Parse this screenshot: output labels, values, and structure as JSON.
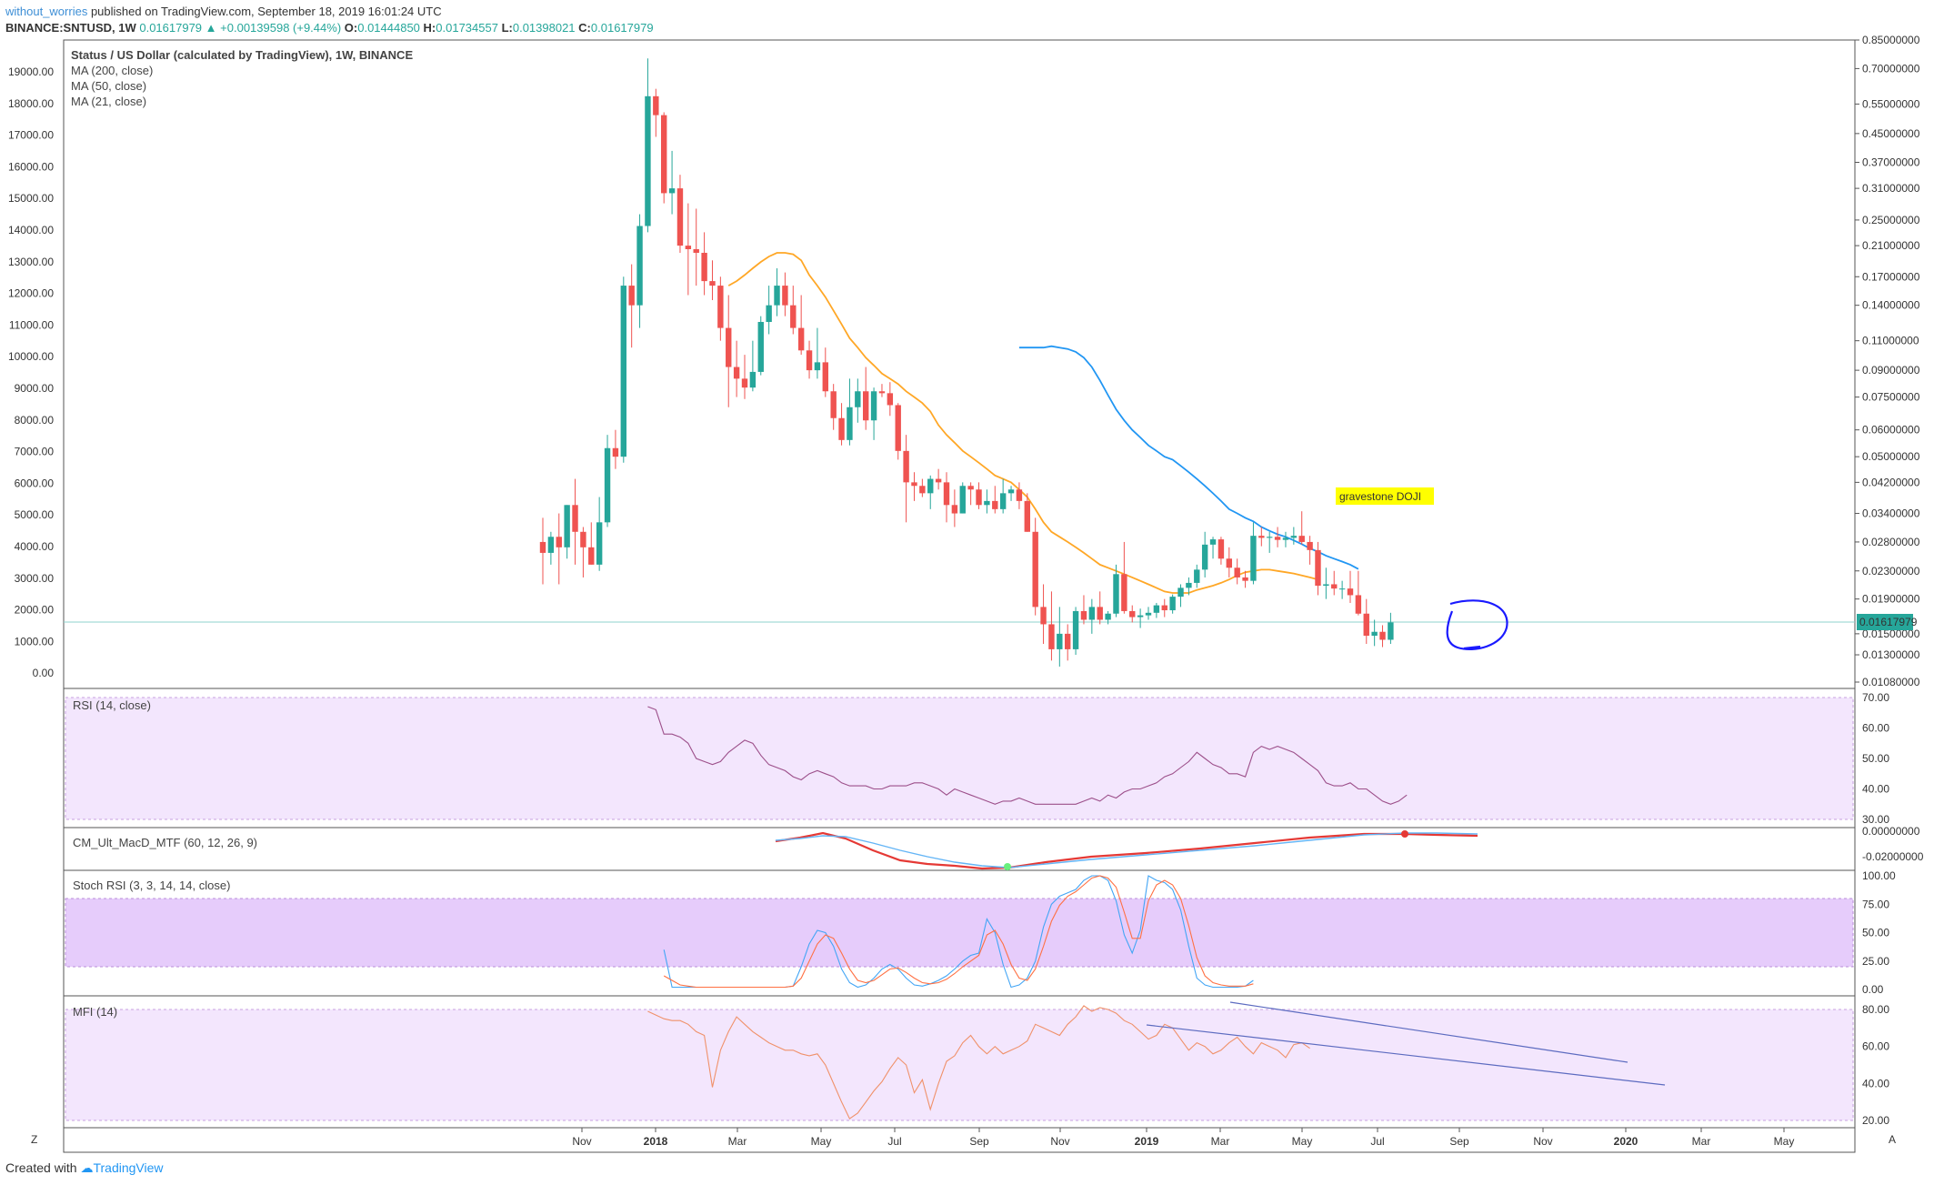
{
  "header": {
    "author": "without_worries",
    "published": " published on TradingView.com, September 18, 2019 16:01:24 UTC",
    "symbol": "BINANCE:SNTUSD, 1W",
    "last": "0.01617979",
    "change": "▲ +0.00139598 (+9.44%)",
    "o_label": "O:",
    "o": "0.01444850",
    "h_label": "H:",
    "h": "0.01734557",
    "l_label": "L:",
    "l": "0.01398021",
    "c_label": "C:",
    "c": "0.01617979"
  },
  "legend": {
    "title": "Status / US Dollar (calculated by TradingView), 1W, BINANCE",
    "ma200": "MA (200, close)",
    "ma50": "MA (50, close)",
    "ma21": "MA (21, close)"
  },
  "panes": {
    "rsi": "RSI (14, close)",
    "macd": "CM_Ult_MacD_MTF (60, 12, 26, 9)",
    "stoch": "Stoch RSI (3, 3, 14, 14, close)",
    "mfi": "MFI (14)"
  },
  "annotation": {
    "text": "gravestone DOJI"
  },
  "price_tag": "0.01617979",
  "footer": {
    "created": "Created with",
    "brand": "TradingView"
  },
  "corner_left": "Z",
  "corner_right": "A",
  "colors": {
    "up": "#26a69a",
    "down": "#ef5350",
    "ma50": "#2196f3",
    "ma21": "#ffa726",
    "band": "#e9d5fb",
    "rsi": "#9c4f8a",
    "mfi": "#f0916a",
    "stochK": "#42a5f5",
    "stochD": "#ff7043",
    "macd_line": "#e53935",
    "macd_signal": "#64b5f6"
  },
  "chart_data": {
    "type": "candlestick",
    "timeframe": "1W",
    "title": "Status / US Dollar (calculated by TradingView), 1W, BINANCE",
    "x_ticks": [
      "Nov",
      "2018",
      "Mar",
      "May",
      "Jul",
      "Sep",
      "Nov",
      "2019",
      "Mar",
      "May",
      "Jul",
      "Sep",
      "Nov",
      "2020",
      "Mar",
      "May"
    ],
    "left_axis": [
      "19000.00",
      "18000.00",
      "17000.00",
      "16000.00",
      "15000.00",
      "14000.00",
      "13000.00",
      "12000.00",
      "11000.00",
      "10000.00",
      "9000.00",
      "8000.00",
      "7000.00",
      "6000.00",
      "5000.00",
      "4000.00",
      "3000.00",
      "2000.00",
      "1000.00",
      "0.00"
    ],
    "right_axis": [
      "0.85000000",
      "0.70000000",
      "0.55000000",
      "0.45000000",
      "0.37000000",
      "0.31000000",
      "0.25000000",
      "0.21000000",
      "0.17000000",
      "0.14000000",
      "0.11000000",
      "0.09000000",
      "0.07500000",
      "0.06000000",
      "0.05000000",
      "0.04200000",
      "0.03400000",
      "0.02800000",
      "0.02300000",
      "0.01900000",
      "0.01500000",
      "0.01300000",
      "0.01080000"
    ],
    "last_price": 0.01617979,
    "candles": [
      {
        "o": 0.028,
        "h": 0.033,
        "l": 0.021,
        "c": 0.026
      },
      {
        "o": 0.026,
        "h": 0.03,
        "l": 0.024,
        "c": 0.029
      },
      {
        "o": 0.029,
        "h": 0.034,
        "l": 0.021,
        "c": 0.027
      },
      {
        "o": 0.027,
        "h": 0.036,
        "l": 0.025,
        "c": 0.036
      },
      {
        "o": 0.036,
        "h": 0.043,
        "l": 0.024,
        "c": 0.03
      },
      {
        "o": 0.03,
        "h": 0.031,
        "l": 0.022,
        "c": 0.027
      },
      {
        "o": 0.027,
        "h": 0.032,
        "l": 0.024,
        "c": 0.024
      },
      {
        "o": 0.024,
        "h": 0.038,
        "l": 0.023,
        "c": 0.032
      },
      {
        "o": 0.032,
        "h": 0.058,
        "l": 0.031,
        "c": 0.053
      },
      {
        "o": 0.053,
        "h": 0.06,
        "l": 0.046,
        "c": 0.05
      },
      {
        "o": 0.05,
        "h": 0.17,
        "l": 0.048,
        "c": 0.16
      },
      {
        "o": 0.16,
        "h": 0.185,
        "l": 0.105,
        "c": 0.14
      },
      {
        "o": 0.14,
        "h": 0.26,
        "l": 0.12,
        "c": 0.24
      },
      {
        "o": 0.24,
        "h": 0.75,
        "l": 0.23,
        "c": 0.58
      },
      {
        "o": 0.58,
        "h": 0.61,
        "l": 0.44,
        "c": 0.51
      },
      {
        "o": 0.51,
        "h": 0.52,
        "l": 0.28,
        "c": 0.3
      },
      {
        "o": 0.3,
        "h": 0.4,
        "l": 0.26,
        "c": 0.31
      },
      {
        "o": 0.31,
        "h": 0.34,
        "l": 0.2,
        "c": 0.21
      },
      {
        "o": 0.21,
        "h": 0.28,
        "l": 0.15,
        "c": 0.205
      },
      {
        "o": 0.205,
        "h": 0.27,
        "l": 0.16,
        "c": 0.2
      },
      {
        "o": 0.2,
        "h": 0.23,
        "l": 0.15,
        "c": 0.165
      },
      {
        "o": 0.165,
        "h": 0.19,
        "l": 0.145,
        "c": 0.16
      },
      {
        "o": 0.16,
        "h": 0.17,
        "l": 0.11,
        "c": 0.12
      },
      {
        "o": 0.12,
        "h": 0.15,
        "l": 0.07,
        "c": 0.092
      },
      {
        "o": 0.092,
        "h": 0.11,
        "l": 0.075,
        "c": 0.085
      },
      {
        "o": 0.085,
        "h": 0.1,
        "l": 0.074,
        "c": 0.08
      },
      {
        "o": 0.08,
        "h": 0.11,
        "l": 0.078,
        "c": 0.089
      },
      {
        "o": 0.089,
        "h": 0.13,
        "l": 0.087,
        "c": 0.125
      },
      {
        "o": 0.125,
        "h": 0.16,
        "l": 0.115,
        "c": 0.14
      },
      {
        "o": 0.14,
        "h": 0.18,
        "l": 0.13,
        "c": 0.16
      },
      {
        "o": 0.16,
        "h": 0.175,
        "l": 0.13,
        "c": 0.14
      },
      {
        "o": 0.14,
        "h": 0.16,
        "l": 0.115,
        "c": 0.12
      },
      {
        "o": 0.12,
        "h": 0.15,
        "l": 0.1,
        "c": 0.103
      },
      {
        "o": 0.103,
        "h": 0.11,
        "l": 0.085,
        "c": 0.09
      },
      {
        "o": 0.09,
        "h": 0.12,
        "l": 0.085,
        "c": 0.095
      },
      {
        "o": 0.095,
        "h": 0.105,
        "l": 0.075,
        "c": 0.078
      },
      {
        "o": 0.078,
        "h": 0.082,
        "l": 0.06,
        "c": 0.065
      },
      {
        "o": 0.065,
        "h": 0.072,
        "l": 0.054,
        "c": 0.056
      },
      {
        "o": 0.056,
        "h": 0.085,
        "l": 0.054,
        "c": 0.07
      },
      {
        "o": 0.07,
        "h": 0.085,
        "l": 0.063,
        "c": 0.078
      },
      {
        "o": 0.078,
        "h": 0.092,
        "l": 0.06,
        "c": 0.064
      },
      {
        "o": 0.064,
        "h": 0.08,
        "l": 0.056,
        "c": 0.078
      },
      {
        "o": 0.078,
        "h": 0.082,
        "l": 0.075,
        "c": 0.077
      },
      {
        "o": 0.077,
        "h": 0.083,
        "l": 0.066,
        "c": 0.071
      },
      {
        "o": 0.071,
        "h": 0.072,
        "l": 0.049,
        "c": 0.052
      },
      {
        "o": 0.052,
        "h": 0.058,
        "l": 0.032,
        "c": 0.042
      },
      {
        "o": 0.042,
        "h": 0.045,
        "l": 0.037,
        "c": 0.041
      },
      {
        "o": 0.041,
        "h": 0.043,
        "l": 0.038,
        "c": 0.039
      },
      {
        "o": 0.039,
        "h": 0.044,
        "l": 0.035,
        "c": 0.043
      },
      {
        "o": 0.043,
        "h": 0.046,
        "l": 0.04,
        "c": 0.042
      },
      {
        "o": 0.042,
        "h": 0.045,
        "l": 0.032,
        "c": 0.036
      },
      {
        "o": 0.036,
        "h": 0.04,
        "l": 0.031,
        "c": 0.034
      },
      {
        "o": 0.034,
        "h": 0.042,
        "l": 0.034,
        "c": 0.041
      },
      {
        "o": 0.041,
        "h": 0.042,
        "l": 0.036,
        "c": 0.04
      },
      {
        "o": 0.04,
        "h": 0.042,
        "l": 0.035,
        "c": 0.036
      },
      {
        "o": 0.036,
        "h": 0.04,
        "l": 0.034,
        "c": 0.037
      },
      {
        "o": 0.037,
        "h": 0.041,
        "l": 0.034,
        "c": 0.035
      },
      {
        "o": 0.035,
        "h": 0.043,
        "l": 0.034,
        "c": 0.039
      },
      {
        "o": 0.039,
        "h": 0.041,
        "l": 0.037,
        "c": 0.04
      },
      {
        "o": 0.04,
        "h": 0.042,
        "l": 0.035,
        "c": 0.037
      },
      {
        "o": 0.037,
        "h": 0.039,
        "l": 0.03,
        "c": 0.03
      },
      {
        "o": 0.03,
        "h": 0.033,
        "l": 0.017,
        "c": 0.018
      },
      {
        "o": 0.018,
        "h": 0.021,
        "l": 0.014,
        "c": 0.016
      },
      {
        "o": 0.016,
        "h": 0.02,
        "l": 0.0125,
        "c": 0.0135
      },
      {
        "o": 0.0135,
        "h": 0.018,
        "l": 0.012,
        "c": 0.015
      },
      {
        "o": 0.015,
        "h": 0.016,
        "l": 0.0125,
        "c": 0.0135
      },
      {
        "o": 0.0135,
        "h": 0.018,
        "l": 0.013,
        "c": 0.0175
      },
      {
        "o": 0.0175,
        "h": 0.0195,
        "l": 0.016,
        "c": 0.0165
      },
      {
        "o": 0.0165,
        "h": 0.019,
        "l": 0.015,
        "c": 0.018
      },
      {
        "o": 0.018,
        "h": 0.02,
        "l": 0.016,
        "c": 0.0165
      },
      {
        "o": 0.0165,
        "h": 0.0175,
        "l": 0.016,
        "c": 0.0172
      },
      {
        "o": 0.0172,
        "h": 0.024,
        "l": 0.0168,
        "c": 0.0225
      },
      {
        "o": 0.0225,
        "h": 0.028,
        "l": 0.0172,
        "c": 0.0175
      },
      {
        "o": 0.0175,
        "h": 0.0182,
        "l": 0.0162,
        "c": 0.0168
      },
      {
        "o": 0.0168,
        "h": 0.0178,
        "l": 0.0156,
        "c": 0.017
      },
      {
        "o": 0.017,
        "h": 0.018,
        "l": 0.0165,
        "c": 0.0173
      },
      {
        "o": 0.0173,
        "h": 0.0185,
        "l": 0.0167,
        "c": 0.0182
      },
      {
        "o": 0.0182,
        "h": 0.019,
        "l": 0.0168,
        "c": 0.0176
      },
      {
        "o": 0.0176,
        "h": 0.0196,
        "l": 0.0172,
        "c": 0.0193
      },
      {
        "o": 0.0193,
        "h": 0.021,
        "l": 0.018,
        "c": 0.0205
      },
      {
        "o": 0.0205,
        "h": 0.022,
        "l": 0.0195,
        "c": 0.0212
      },
      {
        "o": 0.0212,
        "h": 0.024,
        "l": 0.0205,
        "c": 0.0232
      },
      {
        "o": 0.0232,
        "h": 0.03,
        "l": 0.022,
        "c": 0.0275
      },
      {
        "o": 0.0275,
        "h": 0.029,
        "l": 0.025,
        "c": 0.0285
      },
      {
        "o": 0.0285,
        "h": 0.029,
        "l": 0.024,
        "c": 0.025
      },
      {
        "o": 0.025,
        "h": 0.027,
        "l": 0.022,
        "c": 0.0235
      },
      {
        "o": 0.0235,
        "h": 0.025,
        "l": 0.021,
        "c": 0.022
      },
      {
        "o": 0.022,
        "h": 0.023,
        "l": 0.0205,
        "c": 0.0215
      },
      {
        "o": 0.0215,
        "h": 0.032,
        "l": 0.021,
        "c": 0.0292
      },
      {
        "o": 0.0292,
        "h": 0.031,
        "l": 0.0272,
        "c": 0.0288
      },
      {
        "o": 0.0288,
        "h": 0.03,
        "l": 0.026,
        "c": 0.029
      },
      {
        "o": 0.029,
        "h": 0.031,
        "l": 0.027,
        "c": 0.0284
      },
      {
        "o": 0.0284,
        "h": 0.03,
        "l": 0.027,
        "c": 0.0288
      },
      {
        "o": 0.0288,
        "h": 0.031,
        "l": 0.0275,
        "c": 0.0292
      },
      {
        "o": 0.0292,
        "h": 0.0345,
        "l": 0.0275,
        "c": 0.028
      },
      {
        "o": 0.028,
        "h": 0.0292,
        "l": 0.024,
        "c": 0.0265
      },
      {
        "o": 0.0265,
        "h": 0.028,
        "l": 0.0195,
        "c": 0.0208
      },
      {
        "o": 0.0208,
        "h": 0.0235,
        "l": 0.019,
        "c": 0.021
      },
      {
        "o": 0.021,
        "h": 0.023,
        "l": 0.0195,
        "c": 0.0204
      },
      {
        "o": 0.0204,
        "h": 0.0215,
        "l": 0.019,
        "c": 0.0204
      },
      {
        "o": 0.0204,
        "h": 0.023,
        "l": 0.0185,
        "c": 0.0195
      },
      {
        "o": 0.0195,
        "h": 0.023,
        "l": 0.017,
        "c": 0.0172
      },
      {
        "o": 0.0172,
        "h": 0.019,
        "l": 0.014,
        "c": 0.0148
      },
      {
        "o": 0.0148,
        "h": 0.0165,
        "l": 0.0138,
        "c": 0.0152
      },
      {
        "o": 0.0152,
        "h": 0.0159,
        "l": 0.0137,
        "c": 0.0144
      },
      {
        "o": 0.0144,
        "h": 0.0173,
        "l": 0.014,
        "c": 0.0162
      }
    ],
    "ma21": [
      0.16,
      0.165,
      0.172,
      0.18,
      0.188,
      0.195,
      0.2,
      0.2,
      0.198,
      0.19,
      0.172,
      0.16,
      0.148,
      0.135,
      0.123,
      0.112,
      0.105,
      0.098,
      0.093,
      0.088,
      0.085,
      0.082,
      0.078,
      0.075,
      0.072,
      0.068,
      0.062,
      0.058,
      0.055,
      0.052,
      0.05,
      0.048,
      0.046,
      0.044,
      0.043,
      0.042,
      0.04,
      0.038,
      0.035,
      0.032,
      0.03,
      0.029,
      0.028,
      0.027,
      0.026,
      0.025,
      0.024,
      0.0235,
      0.023,
      0.0225,
      0.022,
      0.0215,
      0.021,
      0.0205,
      0.02,
      0.0198,
      0.0198,
      0.0198,
      0.0202,
      0.0205,
      0.0208,
      0.0212,
      0.0217,
      0.0223,
      0.0228,
      0.023,
      0.0232,
      0.0232,
      0.023,
      0.0228,
      0.0226,
      0.0223,
      0.022,
      0.0217
    ],
    "ma50": [
      0.105,
      0.105,
      0.105,
      0.105,
      0.106,
      0.105,
      0.104,
      0.102,
      0.098,
      0.092,
      0.084,
      0.076,
      0.069,
      0.064,
      0.06,
      0.057,
      0.054,
      0.052,
      0.05,
      0.049,
      0.047,
      0.045,
      0.043,
      0.041,
      0.039,
      0.037,
      0.035,
      0.034,
      0.033,
      0.0322,
      0.031,
      0.0302,
      0.0295,
      0.029,
      0.0283,
      0.0276,
      0.0268,
      0.0262,
      0.0255,
      0.025,
      0.0245,
      0.024,
      0.0233
    ],
    "ma21_start_index": 23,
    "ma50_start_index": 59,
    "rsi": [
      67,
      66,
      58,
      58,
      57,
      55,
      50,
      49,
      48,
      49,
      52,
      54,
      56,
      55,
      51,
      48,
      47,
      46,
      44,
      43,
      45,
      46,
      45,
      44,
      42,
      41,
      41,
      41,
      40,
      40,
      41,
      41,
      41,
      42,
      42,
      41,
      40,
      38,
      40,
      39,
      38,
      37,
      36,
      35,
      36,
      36,
      37,
      36,
      35,
      35,
      35,
      35,
      35,
      35,
      36,
      37,
      36,
      38,
      37,
      39,
      40,
      40,
      41,
      42,
      44,
      45,
      47,
      49,
      52,
      50,
      48,
      47,
      45,
      45,
      44,
      52,
      54,
      53,
      54,
      53,
      52,
      50,
      48,
      46,
      42,
      41,
      41,
      42,
      40,
      40,
      38,
      36,
      35,
      36,
      38
    ],
    "rsi_start_index": 13,
    "mfi": [
      79,
      77,
      75,
      74,
      74,
      72,
      68,
      66,
      38,
      58,
      68,
      76,
      72,
      68,
      65,
      62,
      60,
      58,
      58,
      56,
      55,
      56,
      50,
      40,
      30,
      21,
      24,
      30,
      36,
      41,
      48,
      54,
      50,
      35,
      42,
      26,
      40,
      52,
      55,
      62,
      66,
      60,
      56,
      60,
      56,
      58,
      60,
      63,
      72,
      70,
      68,
      66,
      72,
      76,
      82,
      79,
      81,
      80,
      78,
      74,
      72,
      68,
      64,
      66,
      72,
      70,
      64,
      58,
      62,
      60,
      56,
      58,
      62,
      65,
      60,
      56,
      62,
      60,
      58,
      54,
      61,
      62,
      59
    ],
    "mfi_start_index": 13,
    "stoch_k": [
      35,
      2,
      2,
      2,
      2,
      2,
      2,
      2,
      2,
      2,
      2,
      2,
      2,
      2,
      2,
      2,
      3,
      20,
      40,
      52,
      50,
      38,
      18,
      6,
      2,
      4,
      10,
      18,
      22,
      18,
      10,
      4,
      3,
      5,
      8,
      12,
      18,
      25,
      30,
      32,
      62,
      50,
      22,
      2,
      4,
      10,
      25,
      55,
      75,
      82,
      85,
      88,
      96,
      100,
      100,
      96,
      78,
      48,
      32,
      52,
      100,
      96,
      94,
      88,
      70,
      38,
      10,
      4,
      2,
      2,
      2,
      2,
      3,
      8
    ],
    "stoch_d": [
      12,
      8,
      4,
      3,
      2,
      2,
      2,
      2,
      2,
      2,
      2,
      2,
      2,
      2,
      2,
      2,
      3,
      10,
      25,
      40,
      48,
      45,
      32,
      18,
      8,
      6,
      8,
      13,
      18,
      19,
      15,
      10,
      6,
      5,
      6,
      9,
      14,
      20,
      25,
      30,
      48,
      52,
      40,
      22,
      10,
      8,
      18,
      38,
      60,
      74,
      82,
      86,
      92,
      98,
      100,
      98,
      90,
      68,
      45,
      45,
      78,
      92,
      96,
      92,
      80,
      56,
      28,
      12,
      6,
      4,
      3,
      3,
      3,
      5
    ],
    "stoch_start_index": 15,
    "stoch_levels": [
      80,
      20
    ],
    "rsi_axis": [
      "70.00",
      "60.00",
      "50.00",
      "40.00",
      "30.00"
    ],
    "macd_axis": [
      "0.00000000",
      "-0.02000000"
    ],
    "stoch_axis": [
      "100.00",
      "75.00",
      "50.00",
      "25.00",
      "0.00"
    ],
    "mfi_axis": [
      "80.00",
      "60.00",
      "40.00",
      "20.00"
    ]
  }
}
